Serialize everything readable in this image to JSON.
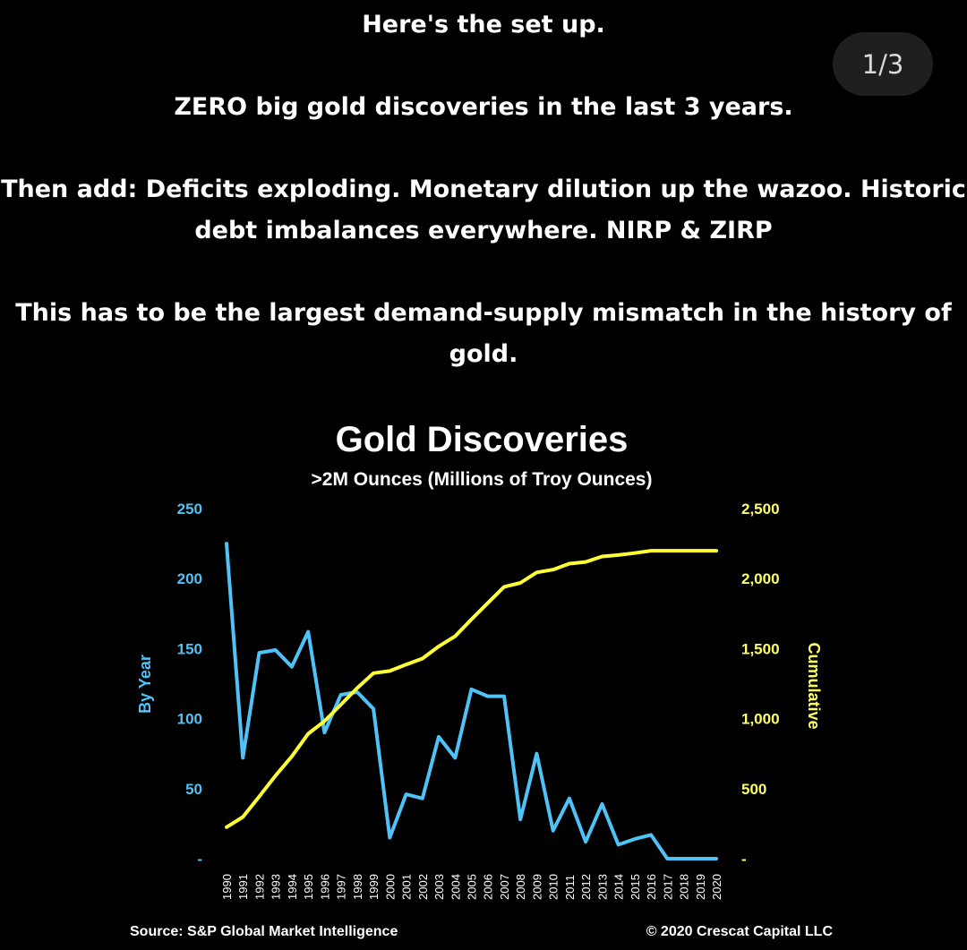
{
  "tweet": {
    "line1": "Here's the set up.",
    "line2": "ZERO big gold discoveries in the last 3 years.",
    "line3a": "Then add: Deficits exploding. Monetary dilution up the wazoo. Historic",
    "line3b": "debt imbalances everywhere. NIRP & ZIRP",
    "line4a": "This has to be the largest demand-supply mismatch in the history of",
    "line4b": "gold."
  },
  "page_counter": "1/3",
  "colors": {
    "by_year": "#4fc3f7",
    "cumulative": "#ffff33",
    "background": "#000000"
  },
  "chart_data": {
    "type": "line",
    "title": "Gold Discoveries",
    "subtitle": ">2M Ounces (Millions of Troy Ounces)",
    "x": [
      1990,
      1991,
      1992,
      1993,
      1994,
      1995,
      1996,
      1997,
      1998,
      1999,
      2000,
      2001,
      2002,
      2003,
      2004,
      2005,
      2006,
      2007,
      2008,
      2009,
      2010,
      2011,
      2012,
      2013,
      2014,
      2015,
      2016,
      2017,
      2018,
      2019,
      2020
    ],
    "series": [
      {
        "name": "By Year",
        "axis": "left",
        "values": [
          225,
          72,
          147,
          149,
          137,
          162,
          90,
          117,
          119,
          107,
          15,
          46,
          43,
          87,
          72,
          121,
          116,
          116,
          28,
          75,
          20,
          43,
          12,
          39,
          10,
          14,
          17,
          0,
          0,
          0,
          0
        ]
      },
      {
        "name": "Cumulative",
        "axis": "right",
        "values": [
          225,
          297,
          444,
          593,
          730,
          892,
          982,
          1099,
          1218,
          1325,
          1340,
          1386,
          1429,
          1516,
          1588,
          1709,
          1825,
          1941,
          1969,
          2044,
          2064,
          2107,
          2119,
          2158,
          2168,
          2182,
          2199,
          2199,
          2199,
          2199,
          2199
        ]
      }
    ],
    "left_axis": {
      "label": "By Year",
      "range": [
        0,
        250
      ],
      "ticks": [
        "-",
        "50",
        "100",
        "150",
        "200",
        "250"
      ]
    },
    "right_axis": {
      "label": "Cumulative",
      "range": [
        0,
        2500
      ],
      "ticks": [
        "-",
        "500",
        "1,000",
        "1,500",
        "2,000",
        "2,500"
      ]
    },
    "grid": false,
    "legend": "none",
    "source": "Source: S&P Global Market Intelligence",
    "copyright": "© 2020 Crescat Capital LLC"
  }
}
